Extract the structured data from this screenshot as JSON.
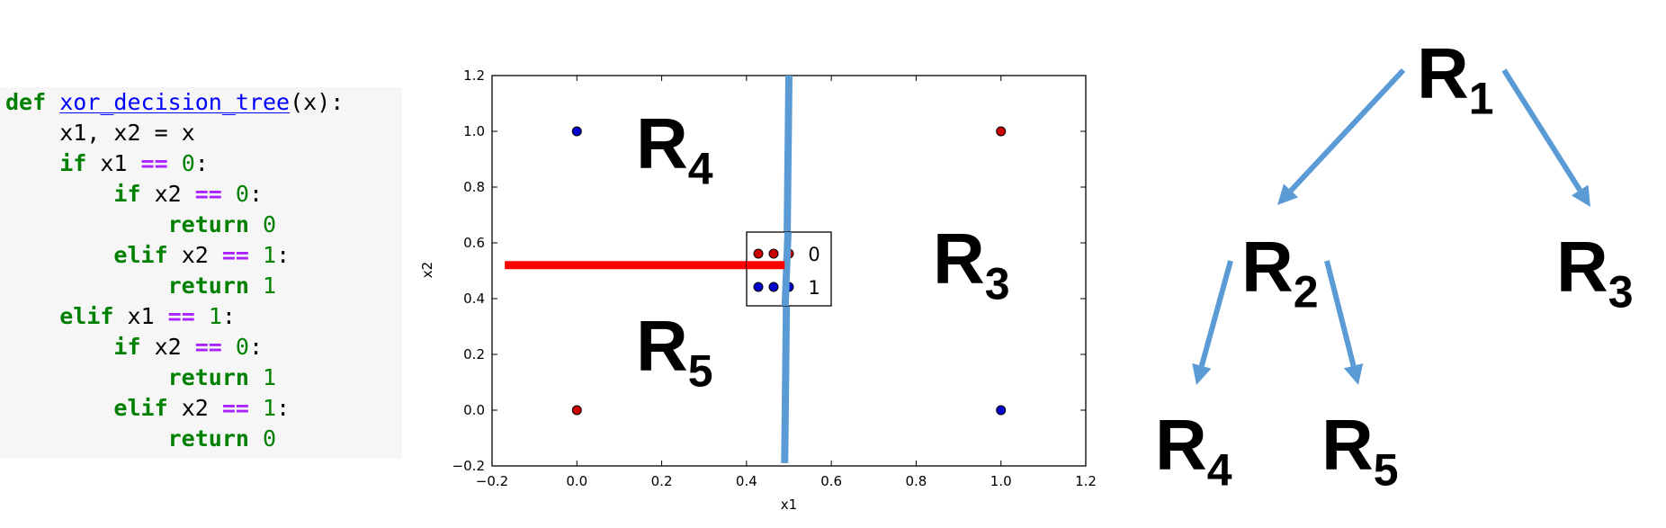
{
  "code": {
    "lines": [
      [
        {
          "t": "def ",
          "c": "kw"
        },
        {
          "t": "xor_decision_tree",
          "c": "fn"
        },
        {
          "t": "(x):",
          "c": ""
        }
      ],
      [
        {
          "t": "    x1, x2 = x",
          "c": ""
        }
      ],
      [
        {
          "t": "    ",
          "c": ""
        },
        {
          "t": "if",
          "c": "kw"
        },
        {
          "t": " x1 ",
          "c": ""
        },
        {
          "t": "==",
          "c": "op"
        },
        {
          "t": " ",
          "c": ""
        },
        {
          "t": "0",
          "c": "num"
        },
        {
          "t": ":",
          "c": ""
        }
      ],
      [
        {
          "t": "        ",
          "c": ""
        },
        {
          "t": "if",
          "c": "kw"
        },
        {
          "t": " x2 ",
          "c": ""
        },
        {
          "t": "==",
          "c": "op"
        },
        {
          "t": " ",
          "c": ""
        },
        {
          "t": "0",
          "c": "num"
        },
        {
          "t": ":",
          "c": ""
        }
      ],
      [
        {
          "t": "            ",
          "c": ""
        },
        {
          "t": "return",
          "c": "kw"
        },
        {
          "t": " ",
          "c": ""
        },
        {
          "t": "0",
          "c": "num"
        }
      ],
      [
        {
          "t": "        ",
          "c": ""
        },
        {
          "t": "elif",
          "c": "kw"
        },
        {
          "t": " x2 ",
          "c": ""
        },
        {
          "t": "==",
          "c": "op"
        },
        {
          "t": " ",
          "c": ""
        },
        {
          "t": "1",
          "c": "num"
        },
        {
          "t": ":",
          "c": ""
        }
      ],
      [
        {
          "t": "            ",
          "c": ""
        },
        {
          "t": "return",
          "c": "kw"
        },
        {
          "t": " ",
          "c": ""
        },
        {
          "t": "1",
          "c": "num"
        }
      ],
      [
        {
          "t": "    ",
          "c": ""
        },
        {
          "t": "elif",
          "c": "kw"
        },
        {
          "t": " x1 ",
          "c": ""
        },
        {
          "t": "==",
          "c": "op"
        },
        {
          "t": " ",
          "c": ""
        },
        {
          "t": "1",
          "c": "num"
        },
        {
          "t": ":",
          "c": ""
        }
      ],
      [
        {
          "t": "        ",
          "c": ""
        },
        {
          "t": "if",
          "c": "kw"
        },
        {
          "t": " x2 ",
          "c": ""
        },
        {
          "t": "==",
          "c": "op"
        },
        {
          "t": " ",
          "c": ""
        },
        {
          "t": "0",
          "c": "num"
        },
        {
          "t": ":",
          "c": ""
        }
      ],
      [
        {
          "t": "            ",
          "c": ""
        },
        {
          "t": "return",
          "c": "kw"
        },
        {
          "t": " ",
          "c": ""
        },
        {
          "t": "1",
          "c": "num"
        }
      ],
      [
        {
          "t": "        ",
          "c": ""
        },
        {
          "t": "elif",
          "c": "kw"
        },
        {
          "t": " x2 ",
          "c": ""
        },
        {
          "t": "==",
          "c": "op"
        },
        {
          "t": " ",
          "c": ""
        },
        {
          "t": "1",
          "c": "num"
        },
        {
          "t": ":",
          "c": ""
        }
      ],
      [
        {
          "t": "            ",
          "c": ""
        },
        {
          "t": "return",
          "c": "kw"
        },
        {
          "t": " ",
          "c": ""
        },
        {
          "t": "0",
          "c": "num"
        }
      ]
    ]
  },
  "chart_data": {
    "type": "scatter",
    "title": "",
    "xlabel": "x1",
    "ylabel": "x2",
    "xlim": [
      -0.2,
      1.2
    ],
    "ylim": [
      -0.2,
      1.2
    ],
    "xticks": [
      "−0.2",
      "0.0",
      "0.2",
      "0.4",
      "0.6",
      "0.8",
      "1.0",
      "1.2"
    ],
    "yticks": [
      "−0.2",
      "0.0",
      "0.2",
      "0.4",
      "0.6",
      "0.8",
      "1.0",
      "1.2"
    ],
    "xtick_values": [
      -0.2,
      0.0,
      0.2,
      0.4,
      0.6,
      0.8,
      1.0,
      1.2
    ],
    "ytick_values": [
      -0.2,
      0.0,
      0.2,
      0.4,
      0.6,
      0.8,
      1.0,
      1.2
    ],
    "series": [
      {
        "name": "0",
        "color": "#cc0000",
        "points": [
          {
            "x": 0,
            "y": 0
          },
          {
            "x": 1,
            "y": 1
          }
        ]
      },
      {
        "name": "1",
        "color": "#0000cc",
        "points": [
          {
            "x": 0,
            "y": 1
          },
          {
            "x": 1,
            "y": 0
          }
        ]
      }
    ],
    "split_lines": [
      {
        "color": "#5b9bd5",
        "from": {
          "x": 0.5,
          "y": 1.2
        },
        "to": {
          "x": 0.49,
          "y": -0.19
        }
      },
      {
        "color": "#ff0000",
        "from": {
          "x": -0.17,
          "y": 0.52
        },
        "to": {
          "x": 0.49,
          "y": 0.52
        }
      }
    ],
    "legend_position": "center",
    "grid": false
  },
  "regions": {
    "plot_r4": {
      "main": "R",
      "sub": "4"
    },
    "plot_r5": {
      "main": "R",
      "sub": "5"
    },
    "plot_r3": {
      "main": "R",
      "sub": "3"
    }
  },
  "tree": {
    "arrow_color": "#5b9bd5",
    "r1": {
      "main": "R",
      "sub": "1"
    },
    "r2": {
      "main": "R",
      "sub": "2"
    },
    "r3": {
      "main": "R",
      "sub": "3"
    },
    "r4": {
      "main": "R",
      "sub": "4"
    },
    "r5": {
      "main": "R",
      "sub": "5"
    }
  }
}
